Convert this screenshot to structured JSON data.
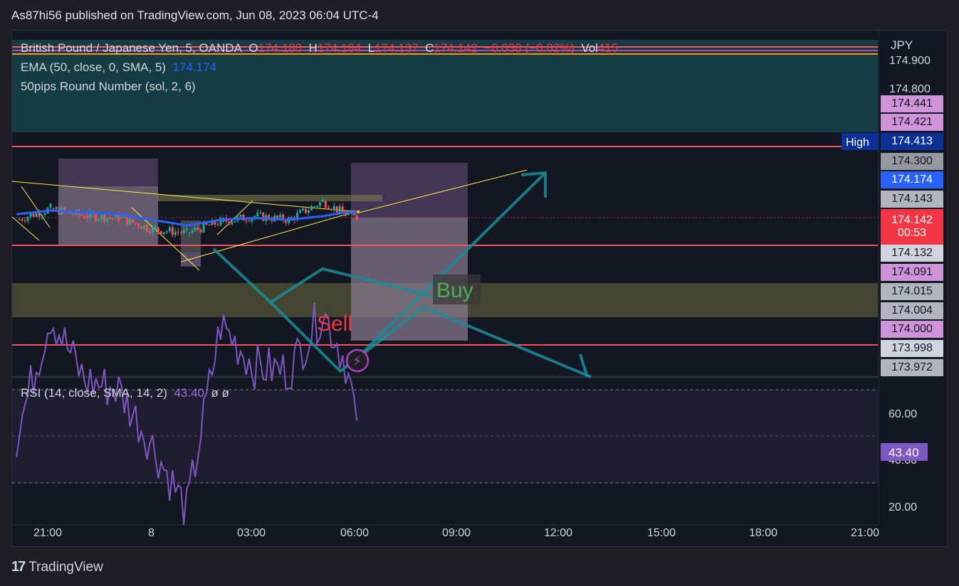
{
  "header": {
    "title": "As87hi56 published on TradingView.com, Jun 08, 2023 06:04 UTC-4"
  },
  "legend": {
    "symbol": "British Pound / Japanese Yen, 5, OANDA",
    "o_label": "O",
    "o": "174.180",
    "h_label": "H",
    "h": "174.184",
    "l_label": "L",
    "l": "174.137",
    "c_label": "C",
    "c": "174.142",
    "chg": "−0.038 (−0.02%)",
    "vol_label": "Vol",
    "vol": "415",
    "ema": "EMA (50, close, 0, SMA, 5)",
    "ema_value": "174.174",
    "round": "50pips Round Number (sol, 2, 6)"
  },
  "currency": "JPY",
  "price_axis": {
    "ticks": [
      "174.900",
      "174.800",
      "174.300"
    ],
    "tags": [
      {
        "label": "174.441",
        "bg": "#ce93d8",
        "fg": "#131722"
      },
      {
        "label": "174.421",
        "bg": "#ce93d8",
        "fg": "#131722"
      },
      {
        "label": "174.413",
        "bg": "#0c3299",
        "fg": "#ffffff"
      },
      {
        "label": "174.300",
        "bg": "#9598a1",
        "fg": "#131722"
      },
      {
        "label": "174.174",
        "bg": "#2962ff",
        "fg": "#ffffff"
      },
      {
        "label": "174.143",
        "bg": "#b2b5be",
        "fg": "#131722"
      },
      {
        "label": "174.142",
        "bg": "#f23645",
        "fg": "#ffffff"
      },
      {
        "label": "174.132",
        "bg": "#d1d4dc",
        "fg": "#131722"
      },
      {
        "label": "174.091",
        "bg": "#ce93d8",
        "fg": "#131722"
      },
      {
        "label": "174.015",
        "bg": "#b2b5be",
        "fg": "#131722"
      },
      {
        "label": "174.004",
        "bg": "#b2b5be",
        "fg": "#131722"
      },
      {
        "label": "174.000",
        "bg": "#ce93d8",
        "fg": "#131722"
      },
      {
        "label": "173.998",
        "bg": "#d1d4dc",
        "fg": "#131722"
      },
      {
        "label": "173.972",
        "bg": "#b2b5be",
        "fg": "#131722"
      }
    ],
    "countdown": "00:53",
    "high_label": "High"
  },
  "annotations": {
    "buy": "Buy",
    "sell": "Sell"
  },
  "rsi": {
    "label": "RSI (14, close, SMA, 14, 2)",
    "value": "43.40",
    "extra": "ø  ø",
    "ticks": [
      "60.00",
      "40.00",
      "20.00"
    ]
  },
  "time_axis": [
    "21:00",
    "8",
    "03:00",
    "06:00",
    "09:00",
    "12:00",
    "15:00",
    "18:00",
    "21:00"
  ],
  "footer": {
    "brand": "TradingView"
  },
  "colors": {
    "ema": "#2962ff",
    "up": "#26a69a",
    "down": "#ef5350",
    "rsi": "#7e57c2",
    "level": "#f7525f"
  },
  "chart_data": [
    {
      "type": "line",
      "title": "British Pound / Japanese Yen, 5, OANDA",
      "series": [
        {
          "name": "EMA (50, close, 0, SMA, 5)",
          "x": [
            "20:00",
            "21:00",
            "22:00",
            "23:00",
            "00:00",
            "01:00",
            "02:00",
            "03:00",
            "04:00",
            "05:00",
            "05:40",
            "06:00"
          ],
          "values": [
            174.16,
            174.18,
            174.17,
            174.16,
            174.13,
            174.1,
            174.13,
            174.14,
            174.13,
            174.15,
            174.17,
            174.17
          ]
        },
        {
          "name": "Close",
          "x": [
            "20:00",
            "21:00",
            "22:00",
            "23:00",
            "00:00",
            "01:00",
            "02:00",
            "03:00",
            "04:00",
            "05:00",
            "05:40",
            "06:00"
          ],
          "values": [
            174.13,
            174.19,
            174.15,
            174.14,
            174.08,
            174.06,
            174.12,
            174.15,
            174.13,
            174.23,
            174.16,
            174.142
          ]
        }
      ],
      "levels": [
        174.413,
        174.132,
        173.998
      ],
      "ylim": [
        173.96,
        174.95
      ]
    },
    {
      "type": "line",
      "title": "RSI (14, close, SMA, 14, 2)",
      "series": [
        {
          "name": "RSI",
          "x": [
            "20:00",
            "21:00",
            "22:00",
            "23:00",
            "00:00",
            "01:00",
            "02:00",
            "03:00",
            "04:00",
            "05:00",
            "05:40",
            "06:00"
          ],
          "values": [
            40,
            66,
            52,
            50,
            38,
            24,
            64,
            55,
            54,
            67,
            56,
            43.4
          ]
        }
      ],
      "ylim": [
        15,
        70
      ]
    }
  ]
}
